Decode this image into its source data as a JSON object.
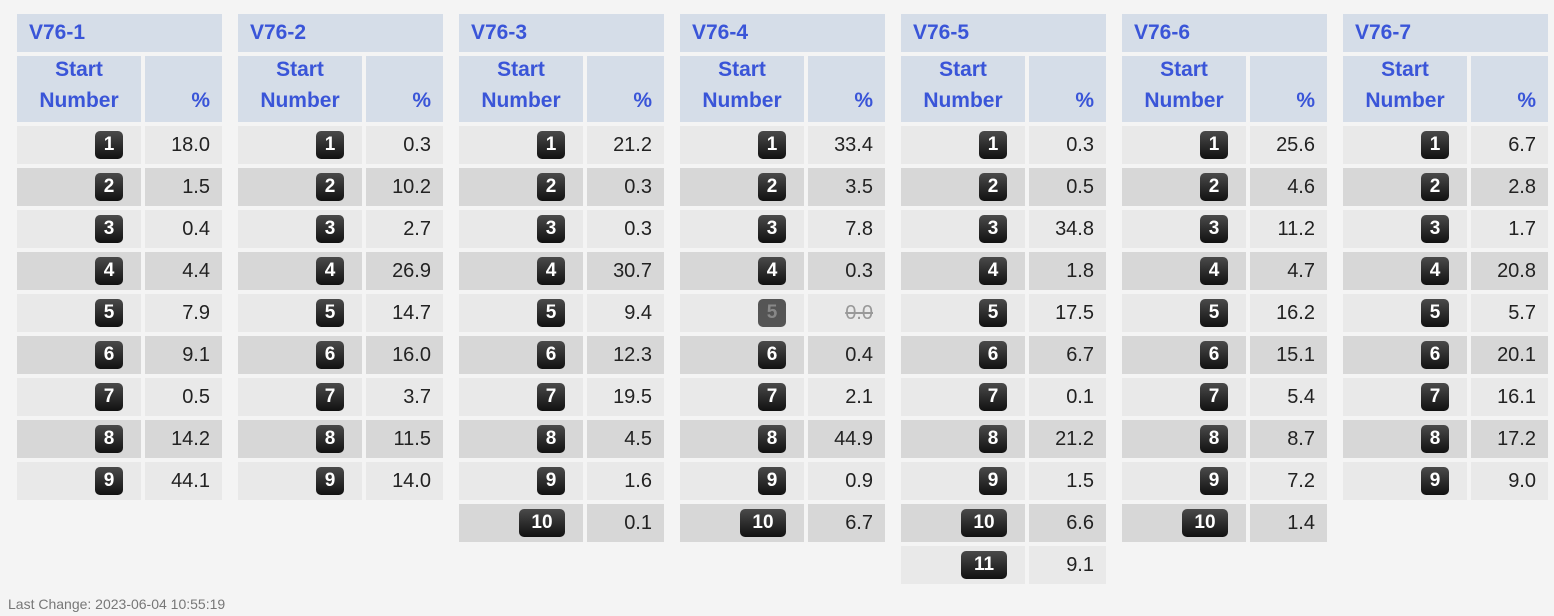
{
  "columns": [
    "Start Number",
    "%"
  ],
  "tables": [
    {
      "title": "V76-1",
      "rows": [
        {
          "start": 1,
          "percent": "18.0"
        },
        {
          "start": 2,
          "percent": "1.5"
        },
        {
          "start": 3,
          "percent": "0.4"
        },
        {
          "start": 4,
          "percent": "4.4"
        },
        {
          "start": 5,
          "percent": "7.9"
        },
        {
          "start": 6,
          "percent": "9.1"
        },
        {
          "start": 7,
          "percent": "0.5"
        },
        {
          "start": 8,
          "percent": "14.2"
        },
        {
          "start": 9,
          "percent": "44.1"
        }
      ]
    },
    {
      "title": "V76-2",
      "rows": [
        {
          "start": 1,
          "percent": "0.3"
        },
        {
          "start": 2,
          "percent": "10.2"
        },
        {
          "start": 3,
          "percent": "2.7"
        },
        {
          "start": 4,
          "percent": "26.9"
        },
        {
          "start": 5,
          "percent": "14.7"
        },
        {
          "start": 6,
          "percent": "16.0"
        },
        {
          "start": 7,
          "percent": "3.7"
        },
        {
          "start": 8,
          "percent": "11.5"
        },
        {
          "start": 9,
          "percent": "14.0"
        }
      ]
    },
    {
      "title": "V76-3",
      "rows": [
        {
          "start": 1,
          "percent": "21.2"
        },
        {
          "start": 2,
          "percent": "0.3"
        },
        {
          "start": 3,
          "percent": "0.3"
        },
        {
          "start": 4,
          "percent": "30.7"
        },
        {
          "start": 5,
          "percent": "9.4"
        },
        {
          "start": 6,
          "percent": "12.3"
        },
        {
          "start": 7,
          "percent": "19.5"
        },
        {
          "start": 8,
          "percent": "4.5"
        },
        {
          "start": 9,
          "percent": "1.6"
        },
        {
          "start": 10,
          "percent": "0.1"
        }
      ]
    },
    {
      "title": "V76-4",
      "rows": [
        {
          "start": 1,
          "percent": "33.4"
        },
        {
          "start": 2,
          "percent": "3.5"
        },
        {
          "start": 3,
          "percent": "7.8"
        },
        {
          "start": 4,
          "percent": "0.3"
        },
        {
          "start": 5,
          "percent": "0.0",
          "scratched": true
        },
        {
          "start": 6,
          "percent": "0.4"
        },
        {
          "start": 7,
          "percent": "2.1"
        },
        {
          "start": 8,
          "percent": "44.9"
        },
        {
          "start": 9,
          "percent": "0.9"
        },
        {
          "start": 10,
          "percent": "6.7"
        }
      ]
    },
    {
      "title": "V76-5",
      "rows": [
        {
          "start": 1,
          "percent": "0.3"
        },
        {
          "start": 2,
          "percent": "0.5"
        },
        {
          "start": 3,
          "percent": "34.8"
        },
        {
          "start": 4,
          "percent": "1.8"
        },
        {
          "start": 5,
          "percent": "17.5"
        },
        {
          "start": 6,
          "percent": "6.7"
        },
        {
          "start": 7,
          "percent": "0.1"
        },
        {
          "start": 8,
          "percent": "21.2"
        },
        {
          "start": 9,
          "percent": "1.5"
        },
        {
          "start": 10,
          "percent": "6.6"
        },
        {
          "start": 11,
          "percent": "9.1"
        }
      ]
    },
    {
      "title": "V76-6",
      "rows": [
        {
          "start": 1,
          "percent": "25.6"
        },
        {
          "start": 2,
          "percent": "4.6"
        },
        {
          "start": 3,
          "percent": "11.2"
        },
        {
          "start": 4,
          "percent": "4.7"
        },
        {
          "start": 5,
          "percent": "16.2"
        },
        {
          "start": 6,
          "percent": "15.1"
        },
        {
          "start": 7,
          "percent": "5.4"
        },
        {
          "start": 8,
          "percent": "8.7"
        },
        {
          "start": 9,
          "percent": "7.2"
        },
        {
          "start": 10,
          "percent": "1.4"
        }
      ]
    },
    {
      "title": "V76-7",
      "rows": [
        {
          "start": 1,
          "percent": "6.7"
        },
        {
          "start": 2,
          "percent": "2.8"
        },
        {
          "start": 3,
          "percent": "1.7"
        },
        {
          "start": 4,
          "percent": "20.8"
        },
        {
          "start": 5,
          "percent": "5.7"
        },
        {
          "start": 6,
          "percent": "20.1"
        },
        {
          "start": 7,
          "percent": "16.1"
        },
        {
          "start": 8,
          "percent": "17.2"
        },
        {
          "start": 9,
          "percent": "9.0"
        }
      ]
    }
  ],
  "footer": "Last Change: 2023-06-04 10:55:19"
}
